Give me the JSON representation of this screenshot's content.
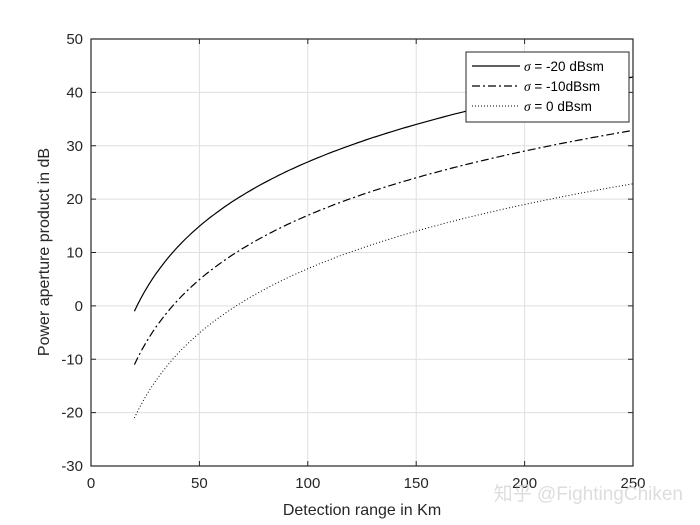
{
  "chart_data": {
    "type": "line",
    "title": "",
    "xlabel": "Detection range in Km",
    "ylabel": "Power aperture product in dB",
    "xlim": [
      0,
      250
    ],
    "ylim": [
      -30,
      50
    ],
    "xticks": [
      0,
      50,
      100,
      150,
      200,
      250
    ],
    "yticks": [
      -30,
      -20,
      -10,
      0,
      10,
      20,
      30,
      40,
      50
    ],
    "grid": true,
    "legend_position": "upper right",
    "x": [
      20,
      30,
      40,
      50,
      60,
      70,
      80,
      90,
      100,
      110,
      120,
      130,
      140,
      150,
      160,
      170,
      180,
      190,
      200,
      210,
      220,
      230,
      240,
      250
    ],
    "series": [
      {
        "name": "σ = -20 dBsm",
        "style": "solid",
        "values": [
          -1.0,
          6.04,
          11.04,
          14.92,
          18.08,
          20.76,
          23.08,
          25.13,
          26.96,
          28.62,
          30.13,
          31.52,
          32.8,
          34.0,
          35.12,
          36.18,
          37.17,
          38.11,
          39.0,
          39.85,
          40.66,
          41.43,
          42.17,
          42.88
        ]
      },
      {
        "name": "σ = -10dBsm",
        "style": "dashdot",
        "values": [
          -11.0,
          -3.96,
          1.04,
          4.92,
          8.08,
          10.76,
          13.08,
          15.13,
          16.96,
          18.62,
          20.13,
          21.52,
          22.8,
          24.0,
          25.12,
          26.18,
          27.17,
          28.11,
          29.0,
          29.85,
          30.66,
          31.43,
          32.17,
          32.88
        ]
      },
      {
        "name": "σ = 0 dBsm",
        "style": "dotted",
        "values": [
          -21.0,
          -13.96,
          -8.96,
          -5.08,
          -1.92,
          0.76,
          3.08,
          5.13,
          6.96,
          8.62,
          10.13,
          11.52,
          12.8,
          14.0,
          15.12,
          16.18,
          17.17,
          18.11,
          19.0,
          19.85,
          20.66,
          21.43,
          22.17,
          22.88
        ]
      }
    ]
  },
  "legend": {
    "items": [
      {
        "symbol": "σ",
        "text": " = -20 dBsm"
      },
      {
        "symbol": "σ",
        "text": " = -10dBsm"
      },
      {
        "symbol": "σ",
        "text": " = 0 dBsm"
      }
    ]
  },
  "watermark": "知乎 @FightingChiken",
  "colors": {
    "line": "#000000",
    "grid": "#dfdfdf",
    "axis": "#262626"
  }
}
